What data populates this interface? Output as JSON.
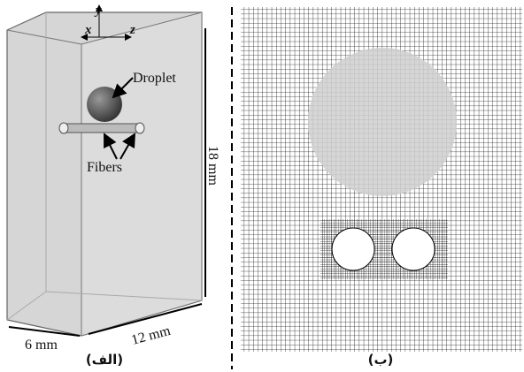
{
  "panels": {
    "left": {
      "axes": {
        "y": "y",
        "x": "x",
        "z": "z"
      },
      "labels": {
        "droplet": "Droplet",
        "fibers": "Fibers"
      },
      "dimensions": {
        "height": "18 mm",
        "length": "12 mm",
        "width": "6 mm"
      },
      "caption": "(الف)"
    },
    "right": {
      "caption": "(ب)"
    }
  }
}
